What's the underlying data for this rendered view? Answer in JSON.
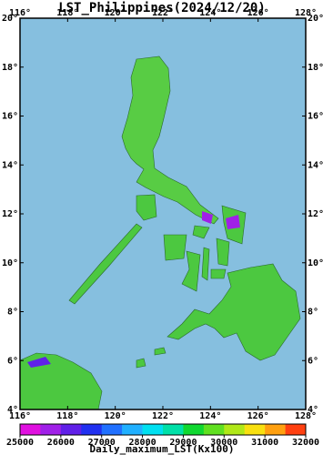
{
  "map": {
    "title": "LST_Philippines(2024/12/20)",
    "xlim": [
      116,
      128
    ],
    "ylim": [
      4,
      20
    ],
    "xticks": [
      {
        "value": 116,
        "label": "116°"
      },
      {
        "value": 118,
        "label": "118°"
      },
      {
        "value": 120,
        "label": "120°"
      },
      {
        "value": 122,
        "label": "122°"
      },
      {
        "value": 124,
        "label": "124°"
      },
      {
        "value": 126,
        "label": "126°"
      },
      {
        "value": 128,
        "label": "128°"
      }
    ],
    "yticks": [
      {
        "value": 4,
        "label": "4°"
      },
      {
        "value": 6,
        "label": "6°"
      },
      {
        "value": 8,
        "label": "8°"
      },
      {
        "value": 10,
        "label": "10°"
      },
      {
        "value": 12,
        "label": "12°"
      },
      {
        "value": 14,
        "label": "14°"
      },
      {
        "value": 16,
        "label": "16°"
      },
      {
        "value": 18,
        "label": "18°"
      },
      {
        "value": 20,
        "label": "20°"
      }
    ],
    "colorbar": {
      "title": "Daily_maximum_LST(Kx100)",
      "lim": [
        25000,
        32000
      ],
      "ticks": [
        25000,
        26000,
        27000,
        28000,
        29000,
        30000,
        31000,
        32000
      ],
      "colors": [
        "#e010e0",
        "#a020e8",
        "#6020e8",
        "#2030f0",
        "#2070ff",
        "#20b0ff",
        "#00e0f0",
        "#00e0a8",
        "#10d830",
        "#60e020",
        "#b0e818",
        "#f8e010",
        "#ffa010",
        "#ff4010"
      ]
    }
  }
}
